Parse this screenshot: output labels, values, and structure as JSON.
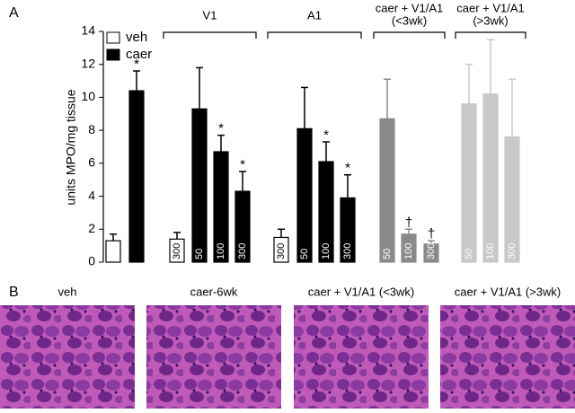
{
  "chart_data": {
    "type": "bar",
    "panel_label": "A",
    "ylabel": "units MPO/mg tissue",
    "ylim": [
      0,
      14
    ],
    "yticks": [
      0,
      2,
      4,
      6,
      8,
      10,
      12,
      14
    ],
    "categories": [
      null,
      null,
      "300",
      "50",
      "100",
      "300",
      "300",
      "50",
      "100",
      "300",
      "50",
      "100",
      "300",
      "50",
      "100",
      "300"
    ],
    "values": [
      1.3,
      10.4,
      1.4,
      9.3,
      6.7,
      4.3,
      1.5,
      8.1,
      6.1,
      3.9,
      8.7,
      1.7,
      1.1,
      9.6,
      10.2,
      7.6
    ],
    "errors": [
      0.4,
      1.2,
      0.4,
      2.5,
      1.0,
      1.2,
      0.5,
      2.5,
      1.2,
      1.4,
      2.4,
      0.3,
      0.2,
      2.4,
      3.3,
      3.5
    ],
    "colors": [
      "#ffffff",
      "#000000",
      "#ffffff",
      "#000000",
      "#000000",
      "#000000",
      "#ffffff",
      "#000000",
      "#000000",
      "#000000",
      "#8a8a8a",
      "#8a8a8a",
      "#8a8a8a",
      "#c8c8c8",
      "#c8c8c8",
      "#c8c8c8"
    ],
    "annotations": [
      null,
      "*",
      null,
      null,
      "*",
      "*",
      null,
      null,
      "*",
      "*",
      null,
      "†",
      "†",
      null,
      null,
      null
    ],
    "groups": [
      {
        "label": [
          "V1"
        ],
        "bars": [
          2,
          5
        ]
      },
      {
        "label": [
          "A1"
        ],
        "bars": [
          6,
          9
        ]
      },
      {
        "label": [
          "caer + V1/A1",
          "(<3wk)"
        ],
        "bars": [
          10,
          12
        ]
      },
      {
        "label": [
          "caer + V1/A1",
          "(>3wk)"
        ],
        "bars": [
          13,
          15
        ]
      }
    ],
    "legend": [
      {
        "name": "veh",
        "color": "#ffffff"
      },
      {
        "name": "caer",
        "color": "#000000"
      }
    ]
  },
  "panel_b": {
    "panel_label": "B",
    "images": [
      "veh",
      "caer-6wk",
      "caer + V1/A1 (<3wk)",
      "caer + V1/A1 (>3wk)"
    ]
  }
}
